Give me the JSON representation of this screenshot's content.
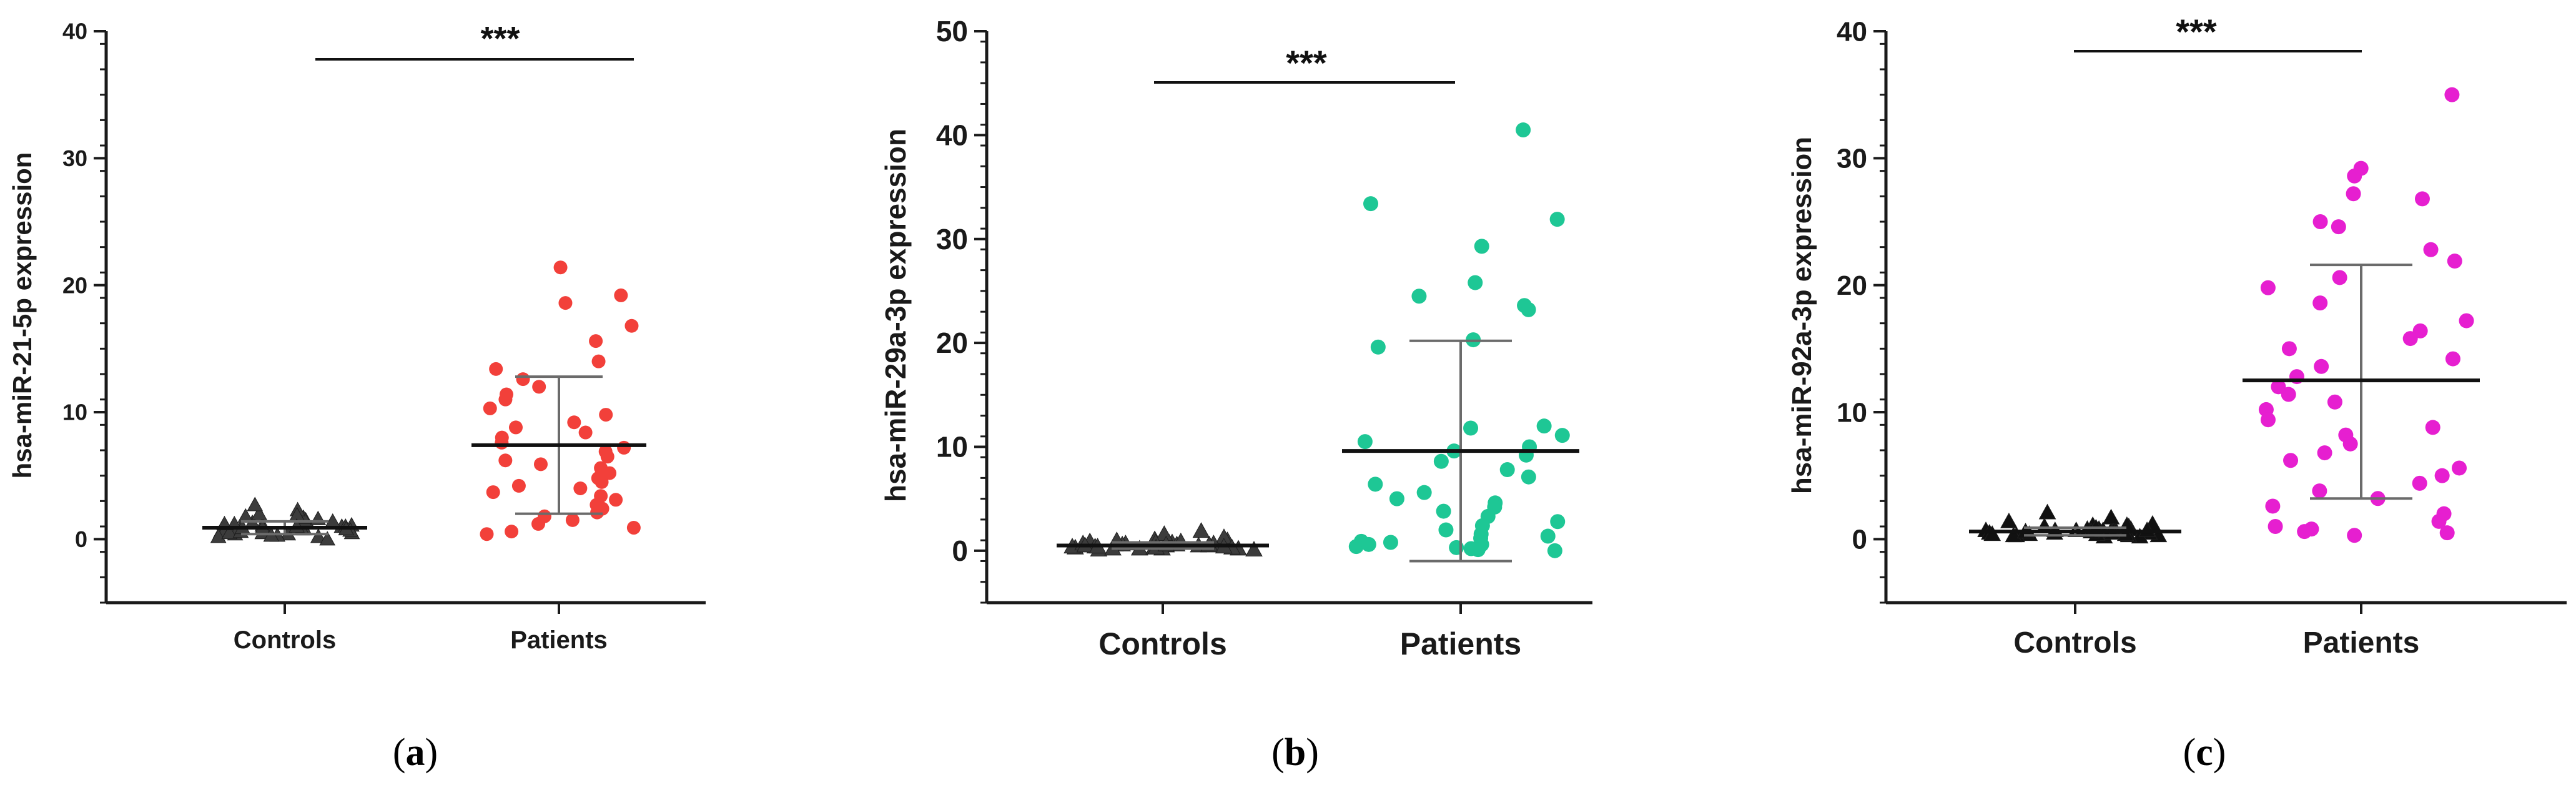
{
  "chart_data": [
    {
      "type": "scatter",
      "panel": "a",
      "caption_open": "(",
      "caption_letter": "a",
      "caption_close": ")",
      "ylabel": "hsa-miR-21-5p expression",
      "xlabel": "",
      "ylim": [
        -5,
        40
      ],
      "yticks": [
        0,
        10,
        20,
        30,
        40
      ],
      "minor_step": 2,
      "categories": [
        "Controls",
        "Patients"
      ],
      "significance": "***",
      "color_controls": "#3c3c3c",
      "color_patients": "#f2403a",
      "series": [
        {
          "name": "Controls",
          "marker": "triangle",
          "mean": 0.9,
          "sd_low": 0.4,
          "sd_high": 1.4,
          "values": [
            0.2,
            0.4,
            0.5,
            0.6,
            0.7,
            0.8,
            0.9,
            1.0,
            1.1,
            1.2,
            0.3,
            0.5,
            0.8,
            1.0,
            1.3,
            1.5,
            1.7,
            2.0,
            2.3,
            2.7,
            0.6,
            0.9,
            1.1,
            0.4,
            0.7,
            1.4,
            1.6,
            0.2,
            0.0,
            0.5,
            1.2,
            0.8,
            1.9,
            0.3,
            1.0,
            0.6,
            1.8,
            0.9
          ]
        },
        {
          "name": "Patients",
          "marker": "circle",
          "mean": 7.4,
          "sd_low": 2.0,
          "sd_high": 12.8,
          "values": [
            21.4,
            19.2,
            18.6,
            16.8,
            15.6,
            14.0,
            13.4,
            12.6,
            12.0,
            11.4,
            11.0,
            10.3,
            9.8,
            9.2,
            8.8,
            8.4,
            8.0,
            7.6,
            7.2,
            6.9,
            6.5,
            6.2,
            5.9,
            5.6,
            5.2,
            4.8,
            4.5,
            4.2,
            4.0,
            3.7,
            3.4,
            3.1,
            2.7,
            2.4,
            2.1,
            1.8,
            1.5,
            1.2,
            0.9,
            0.6,
            0.4
          ]
        }
      ]
    },
    {
      "type": "scatter",
      "panel": "b",
      "caption_open": "(",
      "caption_letter": "b",
      "caption_close": ")",
      "ylabel": "hsa-miR-29a-3p expression",
      "xlabel": "",
      "ylim": [
        -5,
        50
      ],
      "yticks": [
        0,
        10,
        20,
        30,
        40,
        50
      ],
      "minor_step": 2,
      "categories": [
        "Controls",
        "Patients"
      ],
      "significance": "***",
      "color_controls": "#3c3c3c",
      "color_patients": "#1ec795",
      "series": [
        {
          "name": "Controls",
          "marker": "triangle",
          "mean": 0.5,
          "sd_low": 0.2,
          "sd_high": 0.8,
          "values": [
            0.1,
            0.2,
            0.3,
            0.4,
            0.5,
            0.6,
            0.7,
            0.8,
            0.9,
            1.0,
            0.2,
            0.4,
            0.6,
            0.8,
            1.1,
            1.3,
            1.6,
            1.9,
            0.3,
            0.5,
            0.7,
            0.1,
            0.4,
            0.6,
            0.9,
            0.2,
            0.5,
            0.3,
            0.7,
            1.0,
            0.4,
            0.6,
            0.2,
            0.8,
            0.5,
            0.3,
            0.6,
            0.4
          ]
        },
        {
          "name": "Patients",
          "marker": "circle",
          "mean": 9.6,
          "sd_low": -1.0,
          "sd_high": 20.2,
          "values": [
            40.5,
            33.4,
            31.9,
            29.3,
            25.8,
            24.5,
            23.6,
            23.2,
            20.3,
            19.6,
            12.0,
            11.8,
            11.1,
            10.5,
            10.0,
            9.6,
            9.2,
            8.6,
            7.8,
            7.1,
            6.4,
            5.6,
            5.0,
            4.6,
            4.2,
            3.8,
            3.3,
            2.8,
            2.4,
            2.0,
            1.6,
            1.2,
            0.9,
            0.6,
            0.4,
            0.2,
            0.1,
            0.0,
            0.6,
            1.4,
            0.3,
            0.8
          ]
        }
      ]
    },
    {
      "type": "scatter",
      "panel": "c",
      "caption_open": "(",
      "caption_letter": "c",
      "caption_close": ")",
      "ylabel": "hsa-miR-92a-3p expression",
      "xlabel": "",
      "ylim": [
        -5,
        40
      ],
      "yticks": [
        0,
        10,
        20,
        30,
        40
      ],
      "minor_step": 2,
      "categories": [
        "Controls",
        "Patients"
      ],
      "significance": "***",
      "color_controls": "#111111",
      "color_patients": "#e61fd0",
      "series": [
        {
          "name": "Controls",
          "marker": "triangle",
          "mean": 0.6,
          "sd_low": 0.3,
          "sd_high": 0.9,
          "values": [
            0.2,
            0.3,
            0.4,
            0.5,
            0.6,
            0.7,
            0.8,
            0.9,
            1.0,
            1.1,
            0.3,
            0.5,
            0.7,
            0.9,
            1.2,
            1.4,
            1.7,
            2.1,
            0.4,
            0.6,
            0.8,
            0.2,
            0.5,
            0.7,
            1.0,
            0.3,
            0.6,
            0.4,
            0.8,
            1.1,
            0.5,
            0.7,
            0.3,
            0.9,
            0.6,
            0.4,
            0.7,
            0.5
          ]
        },
        {
          "name": "Patients",
          "marker": "circle",
          "mean": 12.5,
          "sd_low": 3.2,
          "sd_high": 21.6,
          "values": [
            35.0,
            29.2,
            28.6,
            27.2,
            26.8,
            25.0,
            24.6,
            22.8,
            21.9,
            20.6,
            19.8,
            18.6,
            17.2,
            16.4,
            15.8,
            15.0,
            14.2,
            13.6,
            12.8,
            12.0,
            11.4,
            10.8,
            10.2,
            9.4,
            8.8,
            8.2,
            7.5,
            6.8,
            6.2,
            5.6,
            5.0,
            4.4,
            3.8,
            3.2,
            2.6,
            2.0,
            1.4,
            0.8,
            0.5,
            0.3,
            0.6,
            1.0
          ]
        }
      ]
    }
  ]
}
